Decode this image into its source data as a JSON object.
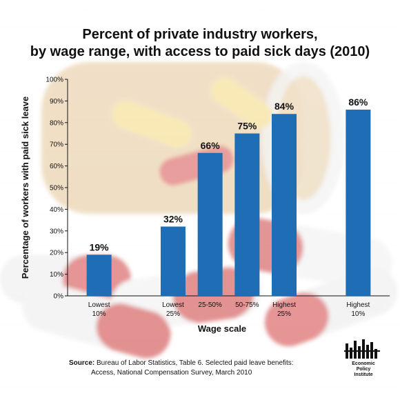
{
  "title_line1": "Percent of private industry workers,",
  "title_line2": "by wage range, with access to paid sick days (2010)",
  "source_label": "Source:",
  "source_text_line1": " Bureau of Labor Statistics, Table 6. Selected paid leave benefits:",
  "source_text_line2": "Access, National Compensation Survey, March 2010",
  "logo": {
    "line1": "Economic",
    "line2": "Policy",
    "line3": "Institute"
  },
  "colors": {
    "bar": "#1f6db5",
    "axis": "#111111",
    "text": "#111111"
  },
  "chart_data": {
    "type": "bar",
    "categories": [
      [
        "Lowest",
        "10%"
      ],
      [
        "Lowest",
        "25%"
      ],
      [
        "25-50%"
      ],
      [
        "50-75%"
      ],
      [
        "Highest",
        "25%"
      ],
      [
        "Highest",
        "10%"
      ]
    ],
    "x_positions": [
      1,
      3,
      4,
      5,
      6,
      8
    ],
    "values": [
      19,
      32,
      66,
      75,
      84,
      86
    ],
    "data_labels": [
      "19%",
      "32%",
      "66%",
      "75%",
      "84%",
      "86%"
    ],
    "ylim": [
      0,
      100
    ],
    "yticks": [
      0,
      10,
      20,
      30,
      40,
      50,
      60,
      70,
      80,
      90,
      100
    ],
    "ytick_labels": [
      "0%",
      "10%",
      "20%",
      "30%",
      "40%",
      "50%",
      "60%",
      "70%",
      "80%",
      "90%",
      "100%"
    ],
    "xlabel": "Wage scale",
    "ylabel": "Percentage of workers with paid sick leave",
    "grid": false,
    "legend": "none"
  }
}
